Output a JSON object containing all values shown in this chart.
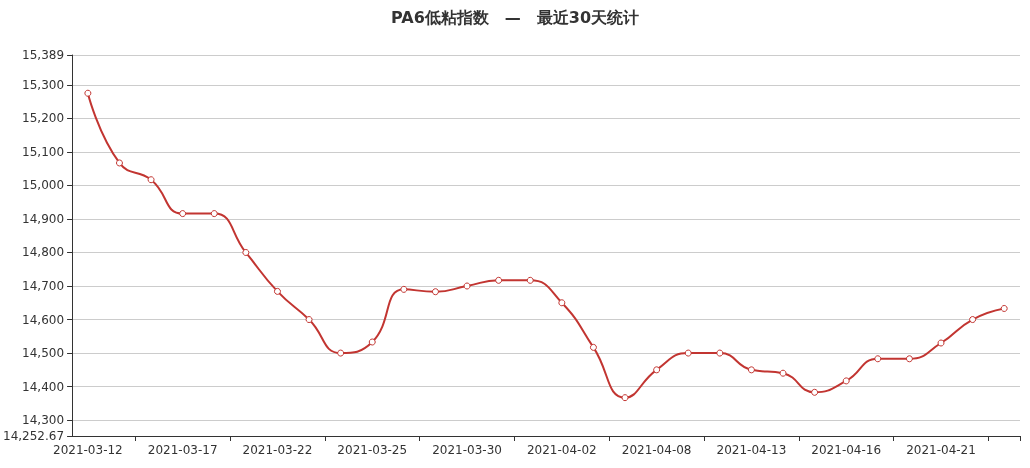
{
  "chart_data": {
    "type": "line",
    "title": "PA6低粘指数　—　最近30天统计",
    "categories": [
      "2021-03-12",
      null,
      null,
      "2021-03-17",
      null,
      null,
      "2021-03-22",
      null,
      null,
      "2021-03-25",
      null,
      null,
      "2021-03-30",
      null,
      null,
      "2021-04-02",
      null,
      null,
      "2021-04-08",
      null,
      null,
      "2021-04-13",
      null,
      null,
      "2021-04-16",
      null,
      null,
      "2021-04-21",
      null,
      null
    ],
    "series": [
      {
        "color": "#c23531",
        "values": [
          15275,
          15067,
          15017,
          14916,
          14916,
          14800,
          14684,
          14600,
          14500,
          14533,
          14690,
          14683,
          14700,
          14717,
          14717,
          14650,
          14517,
          14367,
          14450,
          14500,
          14500,
          14450,
          14440,
          14383,
          14417,
          14483,
          14483,
          14530,
          14600,
          14633
        ]
      }
    ],
    "ylim": [
      14252.67,
      15389
    ],
    "yticks": [
      {
        "value": 14252.67,
        "label": "14,252.67"
      },
      {
        "value": 14300,
        "label": "14,300"
      },
      {
        "value": 14400,
        "label": "14,400"
      },
      {
        "value": 14500,
        "label": "14,500"
      },
      {
        "value": 14600,
        "label": "14,600"
      },
      {
        "value": 14700,
        "label": "14,700"
      },
      {
        "value": 14800,
        "label": "14,800"
      },
      {
        "value": 14900,
        "label": "14,900"
      },
      {
        "value": 15000,
        "label": "15,000"
      },
      {
        "value": 15100,
        "label": "15,100"
      },
      {
        "value": 15200,
        "label": "15,200"
      },
      {
        "value": 15300,
        "label": "15,300"
      },
      {
        "value": 15389,
        "label": "15,389"
      }
    ],
    "grid": "y",
    "marker": "circle",
    "line_style": "solid"
  }
}
